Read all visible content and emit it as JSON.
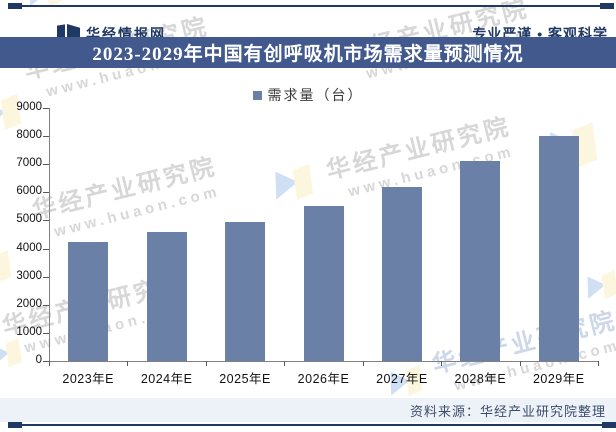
{
  "header": {
    "brand": "华经情报网",
    "slogan": "专业严谨 • 客观科学",
    "logo_icon": "open-book-icon"
  },
  "title": "2023-2029年中国有创呼吸机市场需求量预测情况",
  "legend": {
    "label": "需求量（台）"
  },
  "chart_data": {
    "type": "bar",
    "title": "2023-2029年中国有创呼吸机市场需求量预测情况",
    "categories": [
      "2023年E",
      "2024年E",
      "2025年E",
      "2026年E",
      "2027年E",
      "2028年E",
      "2029年E"
    ],
    "values": [
      4250,
      4600,
      4950,
      5500,
      6200,
      7100,
      8000
    ],
    "series_name": "需求量（台）",
    "xlabel": "",
    "ylabel": "",
    "ylim": [
      0,
      9000
    ],
    "yticks": [
      0,
      1000,
      2000,
      3000,
      4000,
      5000,
      6000,
      7000,
      8000,
      9000
    ],
    "grid": false,
    "legend_position": "top-center",
    "bar_color": "#6b80a6"
  },
  "footer": {
    "source": "资料来源：华经产业研究院整理"
  },
  "watermark": {
    "text": "华经产业研究院",
    "url": "www.huaon.com"
  },
  "colors": {
    "navy": "#1f3864",
    "title_band": "#42598e",
    "bar": "#6b80a6",
    "footer_band": "#edf1f8",
    "watermark_gray": "#d7d7d7",
    "watermark_blue": "#cdd7e8",
    "axis": "#808080"
  }
}
